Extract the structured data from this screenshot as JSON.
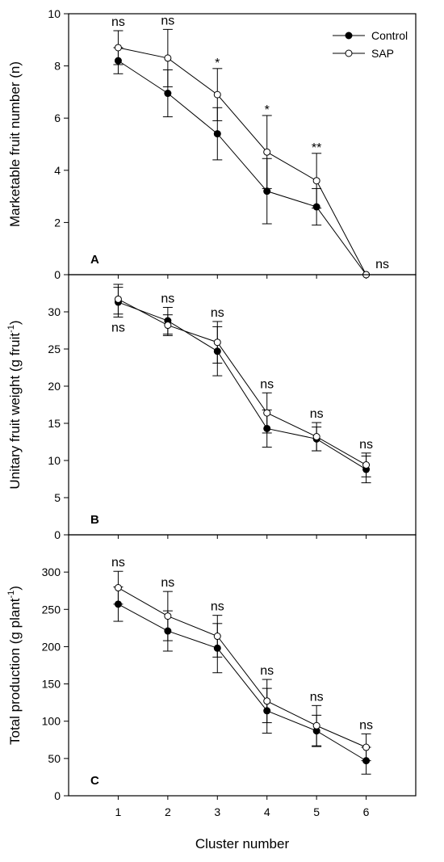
{
  "chart_data": [
    {
      "type": "line",
      "panel": "A",
      "xlabel": "",
      "ylabel": "Marketable fruit number (n)",
      "ylim": [
        0,
        10
      ],
      "yticks": [
        0,
        2,
        4,
        6,
        8,
        10
      ],
      "x": [
        1,
        2,
        3,
        4,
        5,
        6
      ],
      "series": [
        {
          "name": "Control",
          "marker": "filled",
          "values": [
            8.2,
            6.95,
            5.4,
            3.2,
            2.6,
            0
          ],
          "errors": [
            0.5,
            0.9,
            1.0,
            1.25,
            0.7,
            0
          ]
        },
        {
          "name": "SAP",
          "marker": "open",
          "values": [
            8.7,
            8.3,
            6.9,
            4.7,
            3.6,
            0
          ],
          "errors": [
            0.65,
            1.1,
            1.0,
            1.4,
            1.05,
            0
          ]
        }
      ],
      "annotations": [
        {
          "x": 1,
          "text": "ns"
        },
        {
          "x": 2,
          "text": "ns"
        },
        {
          "x": 3,
          "text": "*"
        },
        {
          "x": 4,
          "text": "*"
        },
        {
          "x": 5,
          "text": "**"
        },
        {
          "x": 6,
          "text": "ns"
        }
      ],
      "legend": "top-right"
    },
    {
      "type": "line",
      "panel": "B",
      "xlabel": "",
      "ylabel": "Unitary fruit weight (g fruit",
      "ylabel_sup": "-1",
      "ylabel_end": ")",
      "ylim": [
        0,
        35
      ],
      "yticks": [
        0,
        5,
        10,
        15,
        20,
        25,
        30
      ],
      "x": [
        1,
        2,
        3,
        4,
        5,
        6
      ],
      "series": [
        {
          "name": "Control",
          "marker": "filled",
          "values": [
            31.3,
            28.8,
            24.7,
            14.3,
            12.9,
            8.8
          ],
          "errors": [
            2.0,
            1.8,
            3.3,
            2.5,
            1.6,
            1.8
          ]
        },
        {
          "name": "SAP",
          "marker": "open",
          "values": [
            31.7,
            28.2,
            25.9,
            16.4,
            13.2,
            9.4
          ],
          "errors": [
            2.0,
            1.4,
            2.8,
            2.7,
            1.9,
            1.6
          ]
        }
      ],
      "annotations": [
        {
          "x": 1,
          "text": "ns"
        },
        {
          "x": 2,
          "text": "ns"
        },
        {
          "x": 3,
          "text": "ns"
        },
        {
          "x": 4,
          "text": "ns"
        },
        {
          "x": 5,
          "text": "ns"
        },
        {
          "x": 6,
          "text": "ns"
        }
      ]
    },
    {
      "type": "line",
      "panel": "C",
      "xlabel": "Cluster number",
      "ylabel": "Total production (g plant",
      "ylabel_sup": "-1",
      "ylabel_end": ")",
      "ylim": [
        0,
        350
      ],
      "yticks": [
        0,
        50,
        100,
        150,
        200,
        250,
        300
      ],
      "x": [
        1,
        2,
        3,
        4,
        5,
        6
      ],
      "series": [
        {
          "name": "Control",
          "marker": "filled",
          "values": [
            257,
            221,
            198,
            114,
            87,
            47
          ],
          "errors": [
            23,
            27,
            33,
            30,
            21,
            18
          ]
        },
        {
          "name": "SAP",
          "marker": "open",
          "values": [
            279,
            241,
            214,
            127,
            94,
            65
          ],
          "errors": [
            22,
            33,
            28,
            29,
            27,
            18
          ]
        }
      ],
      "annotations": [
        {
          "x": 1,
          "text": "ns"
        },
        {
          "x": 2,
          "text": "ns"
        },
        {
          "x": 3,
          "text": "ns"
        },
        {
          "x": 4,
          "text": "ns"
        },
        {
          "x": 5,
          "text": "ns"
        },
        {
          "x": 6,
          "text": "ns"
        }
      ]
    }
  ],
  "xticks": [
    "1",
    "2",
    "3",
    "4",
    "5",
    "6"
  ]
}
